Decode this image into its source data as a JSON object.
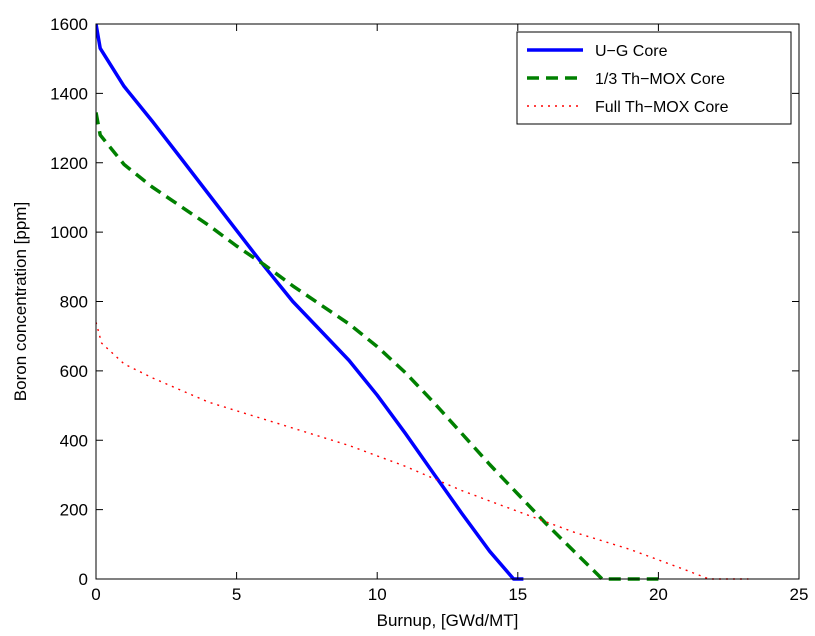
{
  "chart_data": {
    "type": "line",
    "title": "",
    "xlabel": "Burnup, [GWd/MT]",
    "ylabel": "Boron concentration [ppm]",
    "xlim": [
      0,
      25
    ],
    "ylim": [
      0,
      1600
    ],
    "xticks": [
      0,
      5,
      10,
      15,
      20,
      25
    ],
    "yticks": [
      0,
      200,
      400,
      600,
      800,
      1000,
      1200,
      1400,
      1600
    ],
    "grid": false,
    "legend_position": "top-right",
    "series": [
      {
        "name": "U−G Core",
        "color": "#0000ff",
        "style": "solid",
        "x": [
          0,
          0.15,
          1,
          2,
          3,
          4,
          5,
          6,
          7,
          8,
          9,
          10,
          11,
          12,
          13,
          14,
          14.85,
          15.2
        ],
        "y": [
          1600,
          1530,
          1420,
          1320,
          1215,
          1110,
          1005,
          900,
          800,
          715,
          630,
          530,
          420,
          305,
          190,
          80,
          0,
          0
        ]
      },
      {
        "name": "1/3 Th−MOX Core",
        "color": "#008000",
        "style": "dashed",
        "x": [
          0,
          0.15,
          1,
          2,
          3,
          4,
          5,
          6,
          7,
          8,
          9,
          10,
          11,
          12,
          13,
          14,
          15,
          16,
          17,
          18,
          19,
          19.6,
          20
        ],
        "y": [
          1345,
          1280,
          1195,
          1130,
          1075,
          1020,
          960,
          905,
          845,
          790,
          735,
          670,
          595,
          510,
          420,
          330,
          245,
          160,
          80,
          0,
          0,
          0,
          0
        ]
      },
      {
        "name": "Full Th−MOX Core",
        "color": "#ff0000",
        "style": "dotted",
        "x": [
          0,
          0.2,
          1,
          2,
          3,
          4,
          5,
          6,
          7,
          8,
          9,
          10,
          11,
          12,
          13,
          14,
          15,
          16,
          17,
          18,
          19,
          20,
          21,
          21.8,
          22.5,
          23.2
        ],
        "y": [
          740,
          680,
          620,
          580,
          545,
          510,
          485,
          460,
          435,
          410,
          385,
          355,
          325,
          290,
          255,
          225,
          195,
          165,
          135,
          110,
          85,
          55,
          25,
          0,
          0,
          0
        ]
      }
    ]
  }
}
